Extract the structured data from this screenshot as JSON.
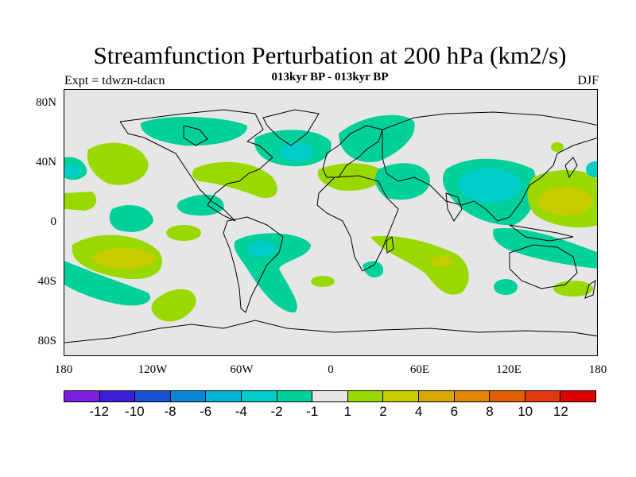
{
  "header": {
    "title": "Streamfunction Perturbation at 200 hPa (km2/s)",
    "subtitle": "013kyr BP - 013kyr BP",
    "left_label": "Expt = tdwzn-tdacn",
    "right_label": "DJF"
  },
  "map": {
    "lat_labels": [
      "80N",
      "40N",
      "0",
      "40S",
      "80S"
    ],
    "lon_labels": [
      "180",
      "120W",
      "60W",
      "0",
      "60E",
      "120E",
      "180"
    ],
    "ocean_color": "#e6e6e6",
    "regions": [
      {
        "level": -1,
        "label": "N Pacific negative"
      },
      {
        "level": 1,
        "label": "N America positive"
      },
      {
        "level": -2,
        "label": "N Atlantic negative"
      },
      {
        "level": -4,
        "label": "Asia negative"
      },
      {
        "level": 4,
        "label": "W Pacific positive"
      },
      {
        "level": 4,
        "label": "S Pacific positive"
      },
      {
        "level": -4,
        "label": "S Atlantic negative"
      },
      {
        "level": 2,
        "label": "Indian Ocean positive"
      }
    ]
  },
  "colorbar": {
    "colors": [
      "#7a1fe0",
      "#3b1fd8",
      "#1a4fd0",
      "#0a86d8",
      "#00b3d6",
      "#00ccc8",
      "#00d09a",
      "#e6e6e6",
      "#99d900",
      "#c6cc00",
      "#d6a800",
      "#e08500",
      "#e35f00",
      "#e23a10",
      "#e00000"
    ],
    "labels": [
      "-12",
      "-10",
      "-8",
      "-6",
      "-4",
      "-2",
      "-1",
      "1",
      "2",
      "4",
      "6",
      "8",
      "10",
      "12"
    ]
  }
}
